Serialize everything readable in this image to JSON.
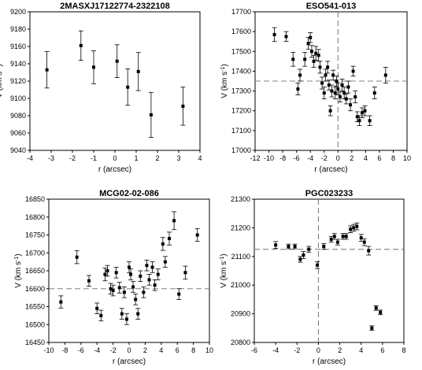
{
  "chart_data": [
    {
      "type": "scatter",
      "title": "2MASXJ17122774-2322108",
      "xlabel": "r (arcsec)",
      "ylabel": "V (km s",
      "ylabel_sup": "-1",
      "ylabel_end": ")",
      "xlim": [
        -4,
        4
      ],
      "ylim": [
        9040,
        9200
      ],
      "xticks": [
        -4,
        -3,
        -2,
        -1,
        0,
        1,
        2,
        3,
        4
      ],
      "yticks": [
        9040,
        9060,
        9080,
        9100,
        9120,
        9140,
        9160,
        9180,
        9200
      ],
      "ref_x": null,
      "ref_y": null,
      "points": [
        {
          "x": -3.2,
          "y": 9133,
          "err": 21
        },
        {
          "x": -1.6,
          "y": 9161,
          "err": 17
        },
        {
          "x": -1.0,
          "y": 9136,
          "err": 19
        },
        {
          "x": 0.1,
          "y": 9143,
          "err": 19
        },
        {
          "x": 0.6,
          "y": 9113,
          "err": 21
        },
        {
          "x": 1.1,
          "y": 9131,
          "err": 22
        },
        {
          "x": 1.7,
          "y": 9081,
          "err": 26
        },
        {
          "x": 3.2,
          "y": 9091,
          "err": 22
        }
      ]
    },
    {
      "type": "scatter",
      "title": "ESO541-013",
      "xlabel": "r (arcsec)",
      "ylabel": "V (km s",
      "ylabel_sup": "-1",
      "ylabel_end": ")",
      "xlim": [
        -12,
        10
      ],
      "ylim": [
        17000,
        17700
      ],
      "xticks": [
        -12,
        -10,
        -8,
        -6,
        -4,
        -2,
        0,
        2,
        4,
        6,
        8,
        10
      ],
      "yticks": [
        17000,
        17100,
        17200,
        17300,
        17400,
        17500,
        17600,
        17700
      ],
      "ref_x": 0,
      "ref_y": 17350,
      "points": [
        {
          "x": -9.2,
          "y": 17585,
          "err": 35
        },
        {
          "x": -7.5,
          "y": 17575,
          "err": 25
        },
        {
          "x": -6.5,
          "y": 17460,
          "err": 35
        },
        {
          "x": -5.8,
          "y": 17310,
          "err": 30
        },
        {
          "x": -5.5,
          "y": 17380,
          "err": 30
        },
        {
          "x": -4.8,
          "y": 17460,
          "err": 35
        },
        {
          "x": -4.3,
          "y": 17540,
          "err": 30
        },
        {
          "x": -4.0,
          "y": 17570,
          "err": 25
        },
        {
          "x": -3.8,
          "y": 17500,
          "err": 30
        },
        {
          "x": -3.5,
          "y": 17450,
          "err": 30
        },
        {
          "x": -3.2,
          "y": 17490,
          "err": 35
        },
        {
          "x": -2.8,
          "y": 17480,
          "err": 30
        },
        {
          "x": -2.6,
          "y": 17420,
          "err": 30
        },
        {
          "x": -2.3,
          "y": 17340,
          "err": 30
        },
        {
          "x": -2.0,
          "y": 17290,
          "err": 30
        },
        {
          "x": -1.8,
          "y": 17380,
          "err": 30
        },
        {
          "x": -1.5,
          "y": 17420,
          "err": 30
        },
        {
          "x": -1.3,
          "y": 17330,
          "err": 25
        },
        {
          "x": -1.1,
          "y": 17200,
          "err": 25
        },
        {
          "x": -0.9,
          "y": 17300,
          "err": 30
        },
        {
          "x": -0.7,
          "y": 17380,
          "err": 25
        },
        {
          "x": -0.4,
          "y": 17290,
          "err": 30
        },
        {
          "x": -0.2,
          "y": 17350,
          "err": 25
        },
        {
          "x": 0.0,
          "y": 17310,
          "err": 30
        },
        {
          "x": 0.3,
          "y": 17270,
          "err": 25
        },
        {
          "x": 0.6,
          "y": 17330,
          "err": 30
        },
        {
          "x": 0.9,
          "y": 17290,
          "err": 30
        },
        {
          "x": 1.2,
          "y": 17260,
          "err": 25
        },
        {
          "x": 1.5,
          "y": 17320,
          "err": 30
        },
        {
          "x": 1.8,
          "y": 17230,
          "err": 30
        },
        {
          "x": 2.2,
          "y": 17400,
          "err": 25
        },
        {
          "x": 2.5,
          "y": 17270,
          "err": 30
        },
        {
          "x": 2.8,
          "y": 17170,
          "err": 25
        },
        {
          "x": 3.1,
          "y": 17150,
          "err": 25
        },
        {
          "x": 3.5,
          "y": 17190,
          "err": 25
        },
        {
          "x": 3.9,
          "y": 17200,
          "err": 25
        },
        {
          "x": 4.6,
          "y": 17150,
          "err": 25
        },
        {
          "x": 5.3,
          "y": 17290,
          "err": 30
        },
        {
          "x": 6.9,
          "y": 17380,
          "err": 40
        }
      ]
    },
    {
      "type": "scatter",
      "title": "MCG02-02-086",
      "xlabel": "r (arcsec)",
      "ylabel": "V (km s",
      "ylabel_sup": "-1",
      "ylabel_end": ")",
      "xlim": [
        -10,
        10
      ],
      "ylim": [
        16450,
        16850
      ],
      "xticks": [
        -10,
        -8,
        -6,
        -4,
        -2,
        0,
        2,
        4,
        6,
        8,
        10
      ],
      "yticks": [
        16450,
        16500,
        16550,
        16600,
        16650,
        16700,
        16750,
        16800,
        16850
      ],
      "ref_x": null,
      "ref_y": 16600,
      "points": [
        {
          "x": -8.5,
          "y": 16563,
          "err": 17
        },
        {
          "x": -6.5,
          "y": 16688,
          "err": 18
        },
        {
          "x": -5.0,
          "y": 16622,
          "err": 15
        },
        {
          "x": -4.0,
          "y": 16545,
          "err": 15
        },
        {
          "x": -3.5,
          "y": 16525,
          "err": 15
        },
        {
          "x": -3.0,
          "y": 16640,
          "err": 18
        },
        {
          "x": -2.7,
          "y": 16650,
          "err": 15
        },
        {
          "x": -2.3,
          "y": 16600,
          "err": 15
        },
        {
          "x": -2.0,
          "y": 16595,
          "err": 15
        },
        {
          "x": -1.6,
          "y": 16645,
          "err": 15
        },
        {
          "x": -1.2,
          "y": 16603,
          "err": 15
        },
        {
          "x": -0.9,
          "y": 16530,
          "err": 15
        },
        {
          "x": -0.6,
          "y": 16590,
          "err": 15
        },
        {
          "x": -0.3,
          "y": 16515,
          "err": 15
        },
        {
          "x": 0.0,
          "y": 16660,
          "err": 15
        },
        {
          "x": 0.2,
          "y": 16640,
          "err": 15
        },
        {
          "x": 0.5,
          "y": 16605,
          "err": 15
        },
        {
          "x": 0.8,
          "y": 16570,
          "err": 15
        },
        {
          "x": 1.1,
          "y": 16530,
          "err": 15
        },
        {
          "x": 1.4,
          "y": 16635,
          "err": 15
        },
        {
          "x": 1.8,
          "y": 16590,
          "err": 15
        },
        {
          "x": 2.2,
          "y": 16665,
          "err": 15
        },
        {
          "x": 2.5,
          "y": 16625,
          "err": 15
        },
        {
          "x": 2.9,
          "y": 16660,
          "err": 15
        },
        {
          "x": 3.2,
          "y": 16610,
          "err": 15
        },
        {
          "x": 3.6,
          "y": 16640,
          "err": 15
        },
        {
          "x": 4.2,
          "y": 16725,
          "err": 18
        },
        {
          "x": 4.5,
          "y": 16675,
          "err": 15
        },
        {
          "x": 5.0,
          "y": 16740,
          "err": 18
        },
        {
          "x": 5.6,
          "y": 16790,
          "err": 25
        },
        {
          "x": 6.2,
          "y": 16585,
          "err": 15
        },
        {
          "x": 7.0,
          "y": 16645,
          "err": 18
        },
        {
          "x": 8.5,
          "y": 16750,
          "err": 18
        }
      ]
    },
    {
      "type": "scatter",
      "title": "PGC023233",
      "xlabel": "r (arcsec)",
      "ylabel": "V (km s",
      "ylabel_sup": "-1",
      "ylabel_end": ")",
      "xlim": [
        -6,
        8
      ],
      "ylim": [
        20800,
        21300
      ],
      "xticks": [
        -6,
        -4,
        -2,
        0,
        2,
        4,
        6,
        8
      ],
      "yticks": [
        20800,
        20900,
        21000,
        21100,
        21200,
        21300
      ],
      "ref_x": 0,
      "ref_y": 21125,
      "points": [
        {
          "x": -4.0,
          "y": 21140,
          "err": 12
        },
        {
          "x": -2.8,
          "y": 21135,
          "err": 8
        },
        {
          "x": -2.2,
          "y": 21135,
          "err": 8
        },
        {
          "x": -1.7,
          "y": 21090,
          "err": 10
        },
        {
          "x": -1.4,
          "y": 21105,
          "err": 12
        },
        {
          "x": -0.9,
          "y": 21125,
          "err": 10
        },
        {
          "x": -0.1,
          "y": 21070,
          "err": 12
        },
        {
          "x": 0.5,
          "y": 21135,
          "err": 10
        },
        {
          "x": 1.2,
          "y": 21160,
          "err": 10
        },
        {
          "x": 1.5,
          "y": 21170,
          "err": 10
        },
        {
          "x": 1.8,
          "y": 21150,
          "err": 10
        },
        {
          "x": 2.3,
          "y": 21170,
          "err": 10
        },
        {
          "x": 2.6,
          "y": 21170,
          "err": 10
        },
        {
          "x": 3.0,
          "y": 21195,
          "err": 12
        },
        {
          "x": 3.3,
          "y": 21200,
          "err": 12
        },
        {
          "x": 3.6,
          "y": 21205,
          "err": 12
        },
        {
          "x": 4.0,
          "y": 21165,
          "err": 12
        },
        {
          "x": 4.3,
          "y": 21150,
          "err": 12
        },
        {
          "x": 4.7,
          "y": 21120,
          "err": 15
        },
        {
          "x": 5.0,
          "y": 20850,
          "err": 8
        },
        {
          "x": 5.4,
          "y": 20920,
          "err": 8
        },
        {
          "x": 5.8,
          "y": 20905,
          "err": 8
        }
      ]
    }
  ]
}
